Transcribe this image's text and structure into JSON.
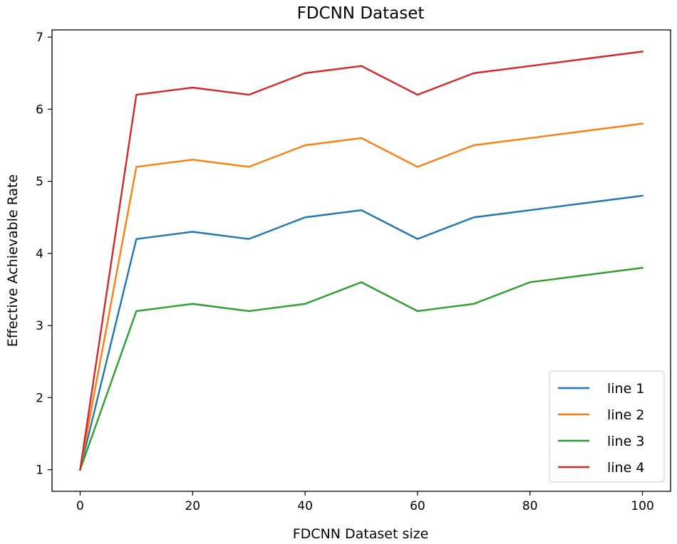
{
  "chart_data": {
    "type": "line",
    "title": "FDCNN Dataset",
    "xlabel": "FDCNN Dataset size",
    "ylabel": "Effective Achievable Rate",
    "xlim": [
      -5,
      105
    ],
    "ylim": [
      0.7,
      7.1
    ],
    "xticks": [
      0,
      20,
      40,
      60,
      80,
      100
    ],
    "yticks": [
      1,
      2,
      3,
      4,
      5,
      6,
      7
    ],
    "grid": false,
    "legend_position": "lower-right",
    "x": [
      0,
      10,
      20,
      30,
      40,
      50,
      60,
      70,
      80,
      90,
      100
    ],
    "series": [
      {
        "name": "line 1",
        "color": "#1f77b4",
        "values": [
          1,
          4.2,
          4.3,
          4.2,
          4.5,
          4.6,
          4.2,
          4.5,
          4.6,
          4.7,
          4.8
        ]
      },
      {
        "name": "line 2",
        "color": "#ff7f0e",
        "values": [
          1,
          5.2,
          5.3,
          5.2,
          5.5,
          5.6,
          5.2,
          5.5,
          5.6,
          5.7,
          5.8
        ]
      },
      {
        "name": "line 3",
        "color": "#2ca02c",
        "values": [
          1,
          3.2,
          3.3,
          3.2,
          3.3,
          3.6,
          3.2,
          3.3,
          3.6,
          3.7,
          3.8
        ]
      },
      {
        "name": "line 4",
        "color": "#d62728",
        "values": [
          1,
          6.2,
          6.3,
          6.2,
          6.5,
          6.6,
          6.2,
          6.5,
          6.6,
          6.7,
          6.8
        ]
      }
    ]
  }
}
